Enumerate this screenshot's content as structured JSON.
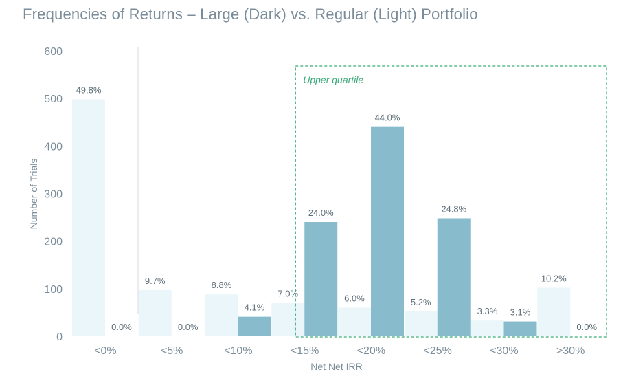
{
  "chart_data": {
    "type": "bar",
    "title": "Frequencies of Returns – Large (Dark) vs. Regular (Light) Portfolio",
    "xlabel": "Net Net IRR",
    "ylabel": "Number of Trials",
    "ylim": [
      0,
      600
    ],
    "yticks": [
      "0",
      "100",
      "200",
      "300",
      "400",
      "500",
      "600"
    ],
    "categories": [
      "<0%",
      "<5%",
      "<10%",
      "<15%",
      "<20%",
      "<25%",
      "<30%",
      ">30%"
    ],
    "series": [
      {
        "name": "Regular (Light)",
        "color": "#eaf6fa",
        "values": [
          498,
          97,
          88,
          70,
          60,
          52,
          33,
          102
        ],
        "labels": [
          "49.8%",
          "9.7%",
          "8.8%",
          "7.0%",
          "6.0%",
          "5.2%",
          "3.3%",
          "10.2%"
        ]
      },
      {
        "name": "Large (Dark)",
        "color": "#88bccc",
        "values": [
          0,
          0,
          41,
          240,
          440,
          248,
          31,
          0
        ],
        "labels": [
          "0.0%",
          "0.0%",
          "4.1%",
          "24.0%",
          "44.0%",
          "24.8%",
          "3.1%",
          "0.0%"
        ]
      }
    ],
    "annotation": {
      "text": "Upper quartile",
      "color": "#3aaa7a",
      "from_category": "<15%",
      "to_category": ">30%",
      "top_value": 570
    }
  }
}
